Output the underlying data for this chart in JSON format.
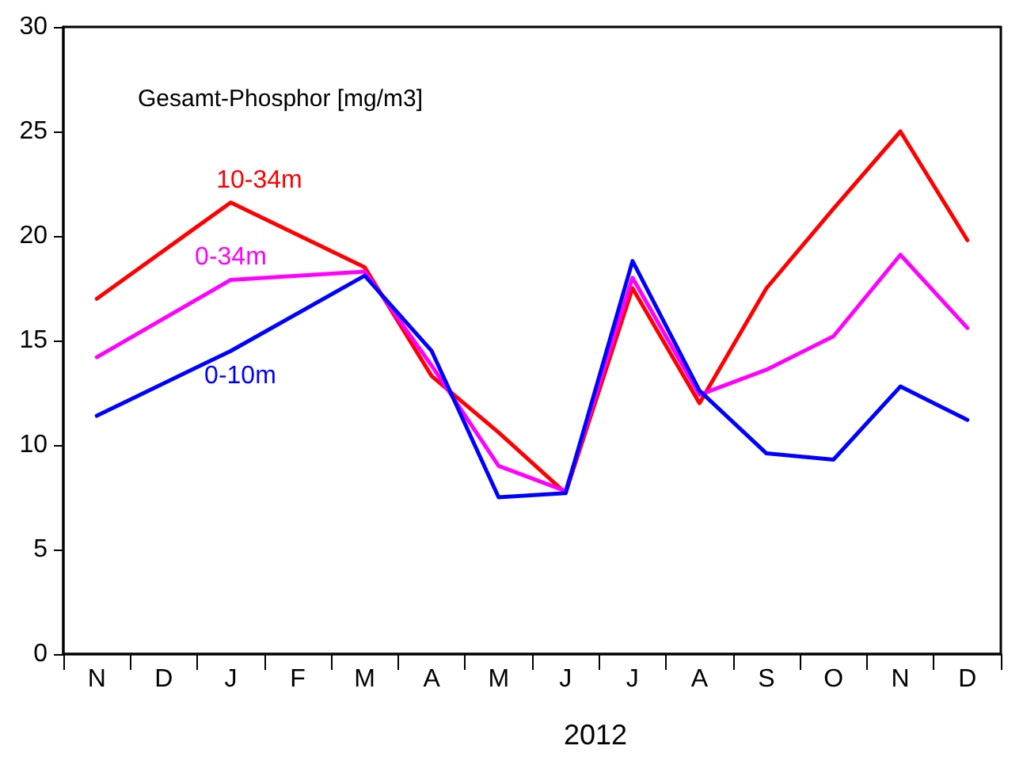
{
  "chart_data": {
    "type": "line",
    "title": "Gesamt-Phosphor [mg/m3]",
    "xlabel": "2012",
    "categories": [
      "N",
      "D",
      "J",
      "F",
      "M",
      "A",
      "M",
      "J",
      "J",
      "A",
      "S",
      "O",
      "N",
      "D"
    ],
    "ylim": [
      0,
      30
    ],
    "yticks": [
      0,
      5,
      10,
      15,
      20,
      25,
      30
    ],
    "grid": false,
    "legend": false,
    "marker": "none",
    "line_style": "solid",
    "series": [
      {
        "name": "10-34m",
        "color": "#ff0000",
        "values": [
          17.0,
          null,
          21.6,
          null,
          18.5,
          13.3,
          10.6,
          7.7,
          17.5,
          12.0,
          17.5,
          21.3,
          25.0,
          19.8
        ]
      },
      {
        "name": "0-34m",
        "color": "#ff00ff",
        "values": [
          14.2,
          null,
          17.9,
          null,
          18.3,
          13.8,
          9.0,
          7.8,
          18.0,
          12.4,
          13.6,
          15.2,
          19.1,
          15.6
        ]
      },
      {
        "name": "0-10m",
        "color": "#0000ff",
        "values": [
          11.4,
          null,
          14.5,
          null,
          18.1,
          14.5,
          7.5,
          7.7,
          18.8,
          12.6,
          9.6,
          9.3,
          12.8,
          11.2
        ]
      }
    ]
  }
}
